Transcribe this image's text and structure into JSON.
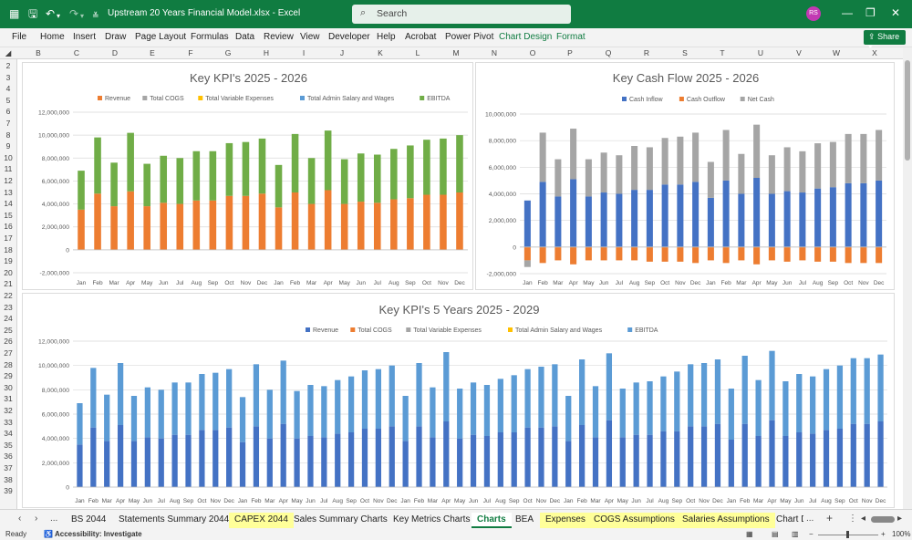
{
  "titlebar": {
    "doc_title": "Upstream 20 Years Financial Model.xlsx  -  Excel",
    "search_placeholder": "Search",
    "avatar_initials": "RS"
  },
  "menu": {
    "items": [
      "File",
      "Home",
      "Insert",
      "Draw",
      "Page Layout",
      "Formulas",
      "Data",
      "Review",
      "View",
      "Developer",
      "Help",
      "Acrobat",
      "Power Pivot",
      "Chart Design",
      "Format"
    ],
    "share_label": "Share"
  },
  "columns": [
    "B",
    "C",
    "D",
    "E",
    "F",
    "G",
    "H",
    "I",
    "J",
    "K",
    "L",
    "M",
    "N",
    "O",
    "P",
    "Q",
    "R",
    "S",
    "T",
    "U",
    "V",
    "W",
    "X"
  ],
  "rows": [
    "2",
    "3",
    "4",
    "5",
    "6",
    "7",
    "8",
    "9",
    "10",
    "11",
    "12",
    "13",
    "14",
    "15",
    "16",
    "17",
    "18",
    "19",
    "20",
    "21",
    "22",
    "23",
    "24",
    "25",
    "26",
    "27",
    "28",
    "29",
    "30",
    "31",
    "32",
    "33",
    "34",
    "35",
    "36",
    "37",
    "38",
    "39"
  ],
  "chart1": {
    "title": "Key KPI's 2025 - 2026",
    "legend": [
      {
        "name": "Revenue",
        "color": "#ed7d31"
      },
      {
        "name": "Total COGS",
        "color": "#a5a5a5"
      },
      {
        "name": "Total Variable Expenses",
        "color": "#ffc000"
      },
      {
        "name": "Total Admin Salary and Wages",
        "color": "#5b9bd5"
      },
      {
        "name": "EBITDA",
        "color": "#70ad47"
      }
    ],
    "yticks": [
      "12,000,000",
      "10,000,000",
      "8,000,000",
      "6,000,000",
      "4,000,000",
      "2,000,000",
      "0",
      "-2,000,000"
    ]
  },
  "chart2": {
    "title": "Key Cash Flow 2025 - 2026",
    "legend": [
      {
        "name": "Cash Inflow",
        "color": "#4472c4"
      },
      {
        "name": "Cash Outflow",
        "color": "#ed7d31"
      },
      {
        "name": "Net Cash",
        "color": "#a5a5a5"
      }
    ],
    "yticks": [
      "10,000,000",
      "8,000,000",
      "6,000,000",
      "4,000,000",
      "2,000,000",
      "0",
      "-2,000,000"
    ]
  },
  "chart3": {
    "title": "Key KPI's 5 Years 2025 - 2029",
    "legend": [
      {
        "name": "Revenue",
        "color": "#4472c4"
      },
      {
        "name": "Total COGS",
        "color": "#ed7d31"
      },
      {
        "name": "Total Variable Expenses",
        "color": "#a5a5a5"
      },
      {
        "name": "Total Admin Salary and Wages",
        "color": "#ffc000"
      },
      {
        "name": "EBITDA",
        "color": "#5b9bd5"
      }
    ],
    "yticks": [
      "12,000,000",
      "10,000,000",
      "8,000,000",
      "6,000,000",
      "4,000,000",
      "2,000,000",
      "0"
    ]
  },
  "chart_data": [
    {
      "type": "bar",
      "title": "Key KPI's 2025 - 2026",
      "ylim": [
        -2000000,
        12000000
      ],
      "categories": [
        "Jan",
        "Feb",
        "Mar",
        "Apr",
        "May",
        "Jun",
        "Jul",
        "Aug",
        "Sep",
        "Oct",
        "Nov",
        "Dec",
        "Jan",
        "Feb",
        "Mar",
        "Apr",
        "May",
        "Jun",
        "Jul",
        "Aug",
        "Sep",
        "Oct",
        "Nov",
        "Dec"
      ],
      "series": [
        {
          "name": "Revenue",
          "values": [
            3500000,
            4900000,
            3800000,
            5100000,
            3800000,
            4100000,
            4000000,
            4300000,
            4300000,
            4700000,
            4700000,
            4900000,
            3700000,
            5000000,
            4000000,
            5200000,
            4000000,
            4200000,
            4100000,
            4400000,
            4500000,
            4800000,
            4800000,
            5000000
          ]
        },
        {
          "name": "EBITDA",
          "values": [
            3400000,
            4900000,
            3800000,
            5100000,
            3700000,
            4100000,
            4000000,
            4300000,
            4300000,
            4600000,
            4700000,
            4800000,
            3700000,
            5100000,
            4000000,
            5200000,
            3900000,
            4200000,
            4200000,
            4400000,
            4600000,
            4800000,
            4900000,
            5000000
          ]
        }
      ]
    },
    {
      "type": "bar",
      "title": "Key Cash Flow 2025 - 2026",
      "ylim": [
        -2000000,
        10000000
      ],
      "categories": [
        "Jan",
        "Feb",
        "Mar",
        "Apr",
        "May",
        "Jun",
        "Jul",
        "Aug",
        "Sep",
        "Oct",
        "Nov",
        "Dec",
        "Jan",
        "Feb",
        "Mar",
        "Apr",
        "May",
        "Jun",
        "Jul",
        "Aug",
        "Sep",
        "Oct",
        "Nov",
        "Dec"
      ],
      "series": [
        {
          "name": "Cash Inflow",
          "values": [
            3500000,
            4900000,
            3800000,
            5100000,
            3800000,
            4100000,
            4000000,
            4300000,
            4300000,
            4700000,
            4700000,
            4900000,
            3700000,
            5000000,
            4000000,
            5200000,
            4000000,
            4200000,
            4100000,
            4400000,
            4500000,
            4800000,
            4800000,
            5000000
          ]
        },
        {
          "name": "Cash Outflow",
          "values": [
            -1000000,
            -1200000,
            -1000000,
            -1300000,
            -1000000,
            -1000000,
            -1000000,
            -1000000,
            -1100000,
            -1100000,
            -1100000,
            -1200000,
            -1000000,
            -1200000,
            -1000000,
            -1300000,
            -1000000,
            -1100000,
            -1000000,
            -1100000,
            -1100000,
            -1200000,
            -1200000,
            -1200000
          ]
        },
        {
          "name": "Net Cash",
          "values": [
            -500000,
            3700000,
            2800000,
            3800000,
            2800000,
            3000000,
            2900000,
            3300000,
            3200000,
            3500000,
            3600000,
            3700000,
            2700000,
            3800000,
            3000000,
            4000000,
            2900000,
            3300000,
            3100000,
            3400000,
            3400000,
            3700000,
            3700000,
            3800000
          ]
        }
      ]
    },
    {
      "type": "bar",
      "title": "Key KPI's 5 Years 2025 - 2029",
      "ylim": [
        0,
        12000000
      ],
      "categories": [
        "Jan",
        "Feb",
        "Mar",
        "Apr",
        "May",
        "Jun",
        "Jul",
        "Aug",
        "Sep",
        "Oct",
        "Nov",
        "Dec",
        "Jan",
        "Feb",
        "Mar",
        "Apr",
        "May",
        "Jun",
        "Jul",
        "Aug",
        "Sep",
        "Oct",
        "Nov",
        "Dec",
        "Jan",
        "Feb",
        "Mar",
        "Apr",
        "May",
        "Jun",
        "Jul",
        "Aug",
        "Sep",
        "Oct",
        "Nov",
        "Dec",
        "Jan",
        "Feb",
        "Mar",
        "Apr",
        "May",
        "Jun",
        "Jul",
        "Aug",
        "Sep",
        "Oct",
        "Nov",
        "Dec",
        "Jan",
        "Feb",
        "Mar",
        "Apr",
        "May",
        "Jun",
        "Jul",
        "Aug",
        "Sep",
        "Oct",
        "Nov",
        "Dec"
      ],
      "series": [
        {
          "name": "Revenue",
          "values": [
            3500000,
            4900000,
            3800000,
            5100000,
            3800000,
            4100000,
            4000000,
            4300000,
            4300000,
            4700000,
            4700000,
            4900000,
            3700000,
            5000000,
            4000000,
            5200000,
            4000000,
            4200000,
            4100000,
            4400000,
            4500000,
            4800000,
            4800000,
            5000000,
            3800000,
            5000000,
            4100000,
            5400000,
            4000000,
            4300000,
            4200000,
            4500000,
            4500000,
            4900000,
            4900000,
            5000000,
            3800000,
            5100000,
            4100000,
            5500000,
            4100000,
            4300000,
            4300000,
            4600000,
            4600000,
            5000000,
            5000000,
            5200000,
            3900000,
            5200000,
            4200000,
            5500000,
            4200000,
            4500000,
            4400000,
            4700000,
            4800000,
            5200000,
            5200000,
            5400000
          ]
        },
        {
          "name": "EBITDA",
          "values": [
            3400000,
            4900000,
            3800000,
            5100000,
            3700000,
            4100000,
            4000000,
            4300000,
            4300000,
            4600000,
            4700000,
            4800000,
            3700000,
            5100000,
            4000000,
            5200000,
            3900000,
            4200000,
            4200000,
            4400000,
            4600000,
            4800000,
            4900000,
            5000000,
            3700000,
            5200000,
            4100000,
            5700000,
            4100000,
            4300000,
            4200000,
            4400000,
            4700000,
            4800000,
            5000000,
            5100000,
            3700000,
            5400000,
            4200000,
            5500000,
            4000000,
            4300000,
            4400000,
            4500000,
            4900000,
            5100000,
            5200000,
            5300000,
            4200000,
            5600000,
            4600000,
            5700000,
            4500000,
            4800000,
            4700000,
            5000000,
            5200000,
            5400000,
            5400000,
            5500000
          ]
        }
      ]
    }
  ],
  "tabs": {
    "sheets": [
      {
        "label": "BS 2044",
        "style": "normal"
      },
      {
        "label": "Statements Summary 2044",
        "style": "normal"
      },
      {
        "label": "CAPEX 2044",
        "style": "yellow"
      },
      {
        "label": "Sales Summary Charts",
        "style": "normal"
      },
      {
        "label": "Key Metrics Charts",
        "style": "normal"
      },
      {
        "label": "Charts",
        "style": "active"
      },
      {
        "label": "BEA",
        "style": "normal"
      },
      {
        "label": "Expenses",
        "style": "yellow"
      },
      {
        "label": "COGS Assumptions",
        "style": "yellow"
      },
      {
        "label": "Salaries Assumptions",
        "style": "yellow"
      },
      {
        "label": "Chart D",
        "style": "normal"
      }
    ],
    "more_label": "...",
    "add_label": "+"
  },
  "status": {
    "ready": "Ready",
    "accessibility": "Accessibility: Investigate",
    "zoom": "100%"
  }
}
